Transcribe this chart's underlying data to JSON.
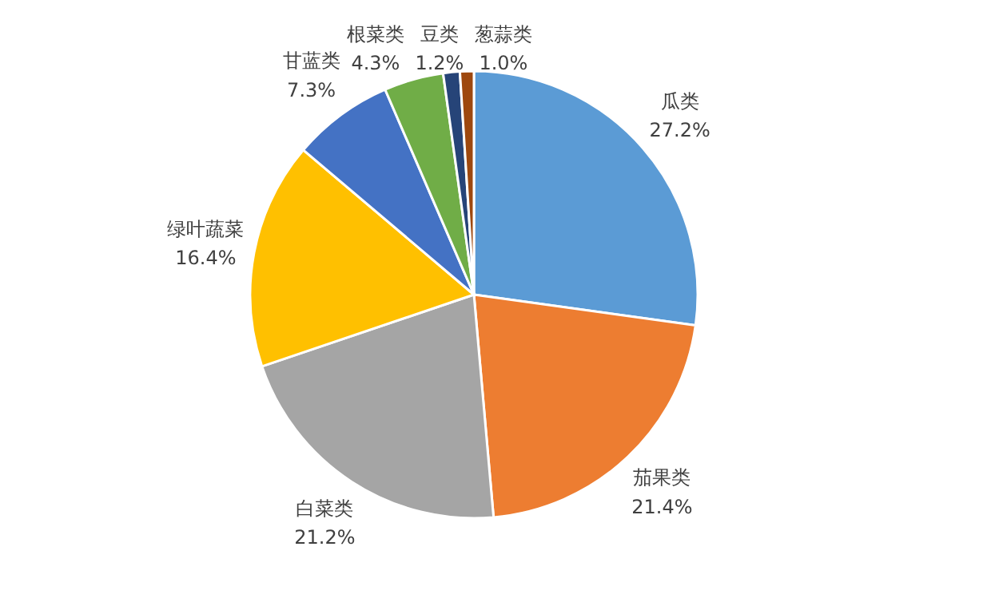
{
  "chart_data": {
    "type": "pie",
    "categories": [
      "瓜类",
      "茄果类",
      "白菜类",
      "绿叶蔬菜",
      "甘蓝类",
      "根菜类",
      "豆类",
      "葱蒜类"
    ],
    "values": [
      27.2,
      21.4,
      21.2,
      16.4,
      7.3,
      4.3,
      1.2,
      1.0
    ],
    "colors": [
      "#5b9bd5",
      "#ed7d31",
      "#a5a5a5",
      "#ffc000",
      "#4472c4",
      "#70ad47",
      "#264478",
      "#9e480e"
    ],
    "value_labels": [
      "27.2%",
      "21.4%",
      "21.2%",
      "16.4%",
      "7.3%",
      "4.3%",
      "1.2%",
      "1.0%"
    ],
    "legend": false
  }
}
